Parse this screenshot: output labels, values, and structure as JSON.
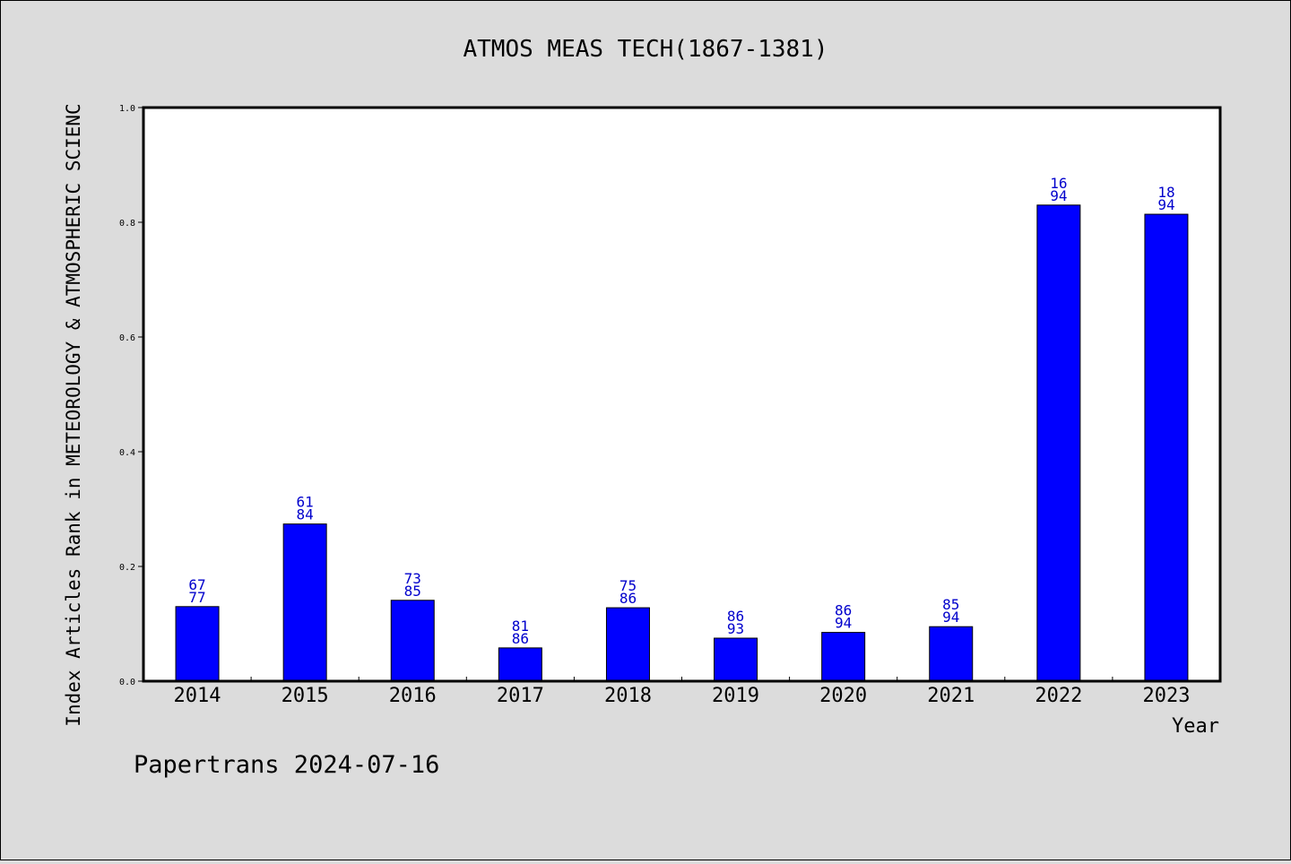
{
  "chart_data": {
    "type": "bar",
    "title": "ATMOS MEAS TECH(1867-1381)",
    "ylabel": "Index Articles Rank in METEOROLOGY & ATMOSPHERIC SCIENC",
    "xlabel": "Year",
    "footer": "Papertrans 2024-07-16",
    "categories": [
      "2014",
      "2015",
      "2016",
      "2017",
      "2018",
      "2019",
      "2020",
      "2021",
      "2022",
      "2023"
    ],
    "values": [
      0.13,
      0.274,
      0.141,
      0.058,
      0.128,
      0.075,
      0.085,
      0.095,
      0.83,
      0.814
    ],
    "labels_top": [
      "67",
      "61",
      "73",
      "81",
      "75",
      "86",
      "86",
      "85",
      "16",
      "18"
    ],
    "labels_bottom": [
      "77",
      "84",
      "85",
      "86",
      "86",
      "93",
      "94",
      "94",
      "94",
      "94"
    ],
    "ylim": [
      0,
      1.0
    ],
    "yticks": [
      "0.0",
      "0.2",
      "0.4",
      "0.6",
      "0.8",
      "1.0"
    ],
    "grid": false,
    "bar_color": "#0000ff",
    "label_color": "#0000cc",
    "background": "#dcdcdc",
    "plot_background": "#ffffff"
  }
}
